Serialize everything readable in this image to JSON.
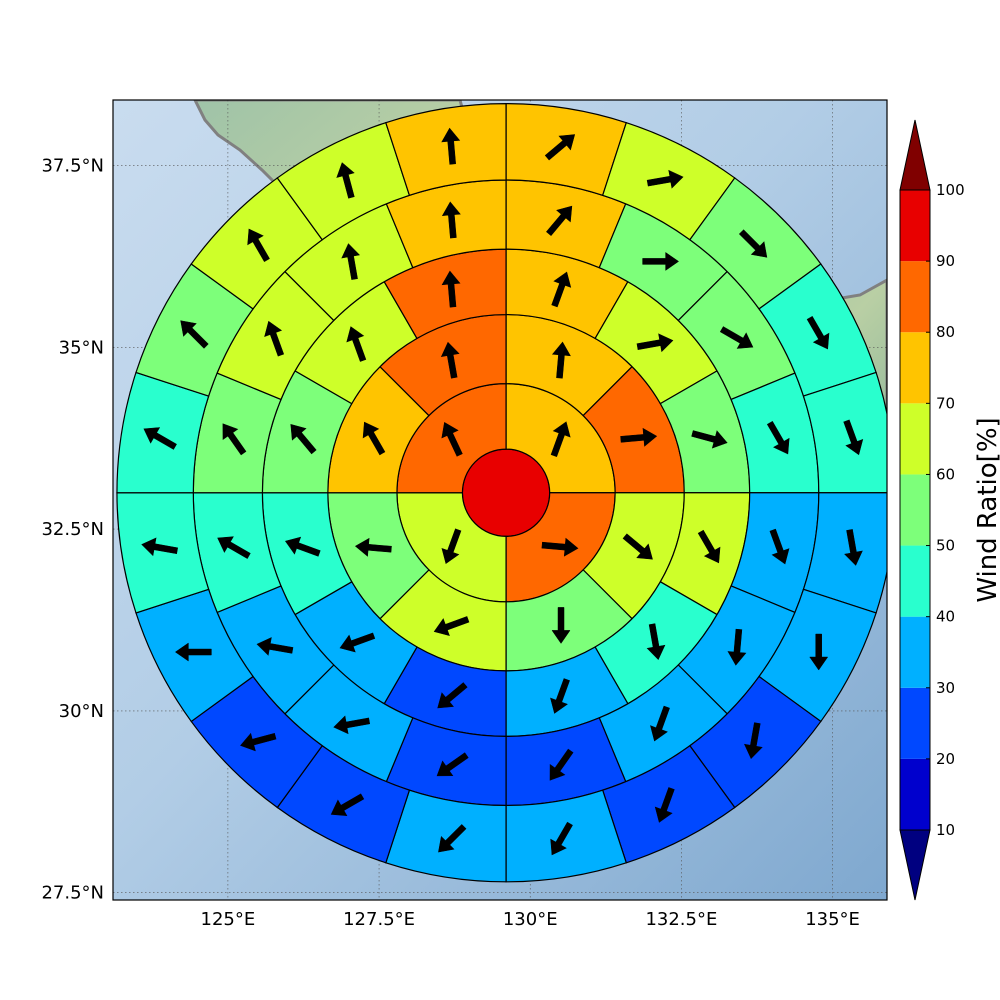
{
  "chart_data": {
    "type": "heatmap",
    "subtype": "polar-sector-wind-map",
    "map": {
      "lon_range": [
        123.1,
        135.9
      ],
      "lat_range": [
        27.4,
        38.4
      ],
      "lon_ticks": [
        {
          "value": 125,
          "label": "125°E"
        },
        {
          "value": 127.5,
          "label": "127.5°E"
        },
        {
          "value": 130,
          "label": "130°E"
        },
        {
          "value": 132.5,
          "label": "132.5°E"
        },
        {
          "value": 135,
          "label": "135°E"
        }
      ],
      "lat_ticks": [
        {
          "value": 27.5,
          "label": "27.5°N"
        },
        {
          "value": 30,
          "label": "30°N"
        },
        {
          "value": 32.5,
          "label": "32.5°N"
        },
        {
          "value": 35,
          "label": "35°N"
        },
        {
          "value": 37.5,
          "label": "37.5°N"
        }
      ],
      "grid": true,
      "basemap": "shaded-relief",
      "coastline_color": "#808080"
    },
    "polar_grid": {
      "center_lon": 129.6,
      "center_lat": 33.0,
      "ring_radii_deg": [
        0.6,
        1.5,
        2.45,
        3.35,
        4.3,
        5.35
      ],
      "sector_counts": [
        1,
        4,
        8,
        12,
        16,
        20
      ]
    },
    "ratio_values_percent": [
      [
        95
      ],
      [
        75,
        85,
        65,
        85
      ],
      [
        75,
        85,
        65,
        55,
        65,
        55,
        75,
        85
      ],
      [
        75,
        65,
        55,
        65,
        45,
        35,
        25,
        35,
        45,
        55,
        65,
        85
      ],
      [
        75,
        55,
        55,
        45,
        35,
        35,
        35,
        25,
        25,
        35,
        35,
        45,
        55,
        65,
        65,
        75
      ],
      [
        75,
        65,
        55,
        45,
        45,
        35,
        35,
        25,
        25,
        35,
        35,
        25,
        25,
        35,
        45,
        45,
        55,
        65,
        65,
        75
      ]
    ],
    "wind_arrow_directions_deg": [
      [
        null
      ],
      [
        20,
        95,
        200,
        335
      ],
      [
        5,
        85,
        130,
        180,
        250,
        275,
        330,
        350
      ],
      [
        20,
        80,
        105,
        150,
        170,
        200,
        230,
        250,
        290,
        320,
        340,
        355
      ],
      [
        40,
        90,
        120,
        150,
        160,
        185,
        200,
        215,
        235,
        260,
        280,
        300,
        325,
        340,
        350,
        355
      ],
      [
        50,
        80,
        135,
        150,
        160,
        170,
        180,
        190,
        200,
        210,
        225,
        240,
        255,
        270,
        280,
        300,
        315,
        330,
        345,
        355
      ]
    ],
    "colorbar": {
      "label": "Wind Ratio[%]",
      "ticks": [
        10,
        20,
        30,
        40,
        50,
        60,
        70,
        80,
        90,
        100
      ],
      "levels": [
        0,
        10,
        20,
        30,
        40,
        50,
        60,
        70,
        80,
        90,
        100,
        110
      ],
      "colors": [
        "#000080",
        "#0000cd",
        "#0048ff",
        "#00b0ff",
        "#29ffce",
        "#7dff7a",
        "#ceff29",
        "#ffc400",
        "#ff6800",
        "#e80000",
        "#800000"
      ],
      "extend": "both"
    }
  }
}
